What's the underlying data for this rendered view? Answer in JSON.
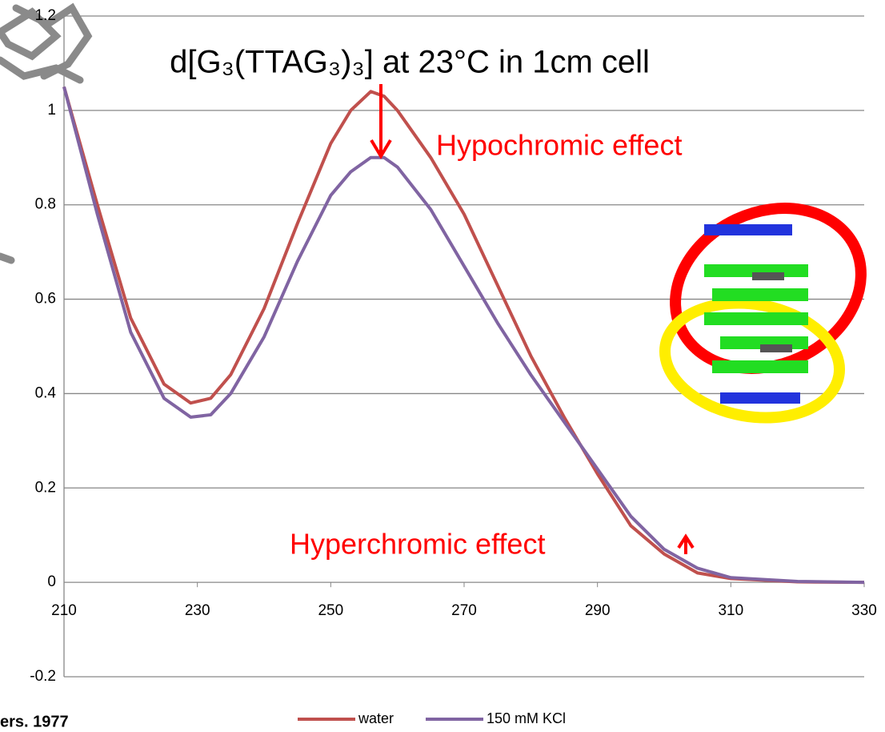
{
  "chart_data": {
    "type": "line",
    "title": "d[G₃(TTAG₃)₃] at 23°C in 1cm cell",
    "annotations": [
      "Hypochromic effect",
      "Hyperchromic effect",
      "ers. 1977"
    ],
    "x": [
      210,
      215,
      220,
      225,
      229,
      232,
      235,
      240,
      245,
      250,
      253,
      256,
      258,
      260,
      265,
      270,
      275,
      280,
      285,
      290,
      295,
      300,
      305,
      310,
      320,
      330
    ],
    "series": [
      {
        "name": "water",
        "color": "#c0504d",
        "values": [
          1.05,
          0.8,
          0.56,
          0.42,
          0.38,
          0.39,
          0.44,
          0.58,
          0.76,
          0.93,
          1.0,
          1.04,
          1.03,
          1.0,
          0.9,
          0.78,
          0.63,
          0.48,
          0.35,
          0.23,
          0.12,
          0.06,
          0.02,
          0.008,
          0.001,
          0
        ]
      },
      {
        "name": "150 mM KCl",
        "color": "#8064a2",
        "values": [
          1.05,
          0.78,
          0.53,
          0.39,
          0.35,
          0.355,
          0.4,
          0.52,
          0.68,
          0.82,
          0.87,
          0.9,
          0.9,
          0.88,
          0.79,
          0.67,
          0.55,
          0.44,
          0.34,
          0.24,
          0.14,
          0.07,
          0.03,
          0.01,
          0.002,
          0
        ]
      }
    ],
    "xlim": [
      210,
      330
    ],
    "xticks": [
      210,
      230,
      250,
      270,
      290,
      310,
      330
    ],
    "ylim": [
      -0.2,
      1.2
    ],
    "yticks": [
      -0.2,
      0,
      0.2,
      0.4,
      0.6,
      0.8,
      1,
      1.2
    ],
    "grid": true
  }
}
